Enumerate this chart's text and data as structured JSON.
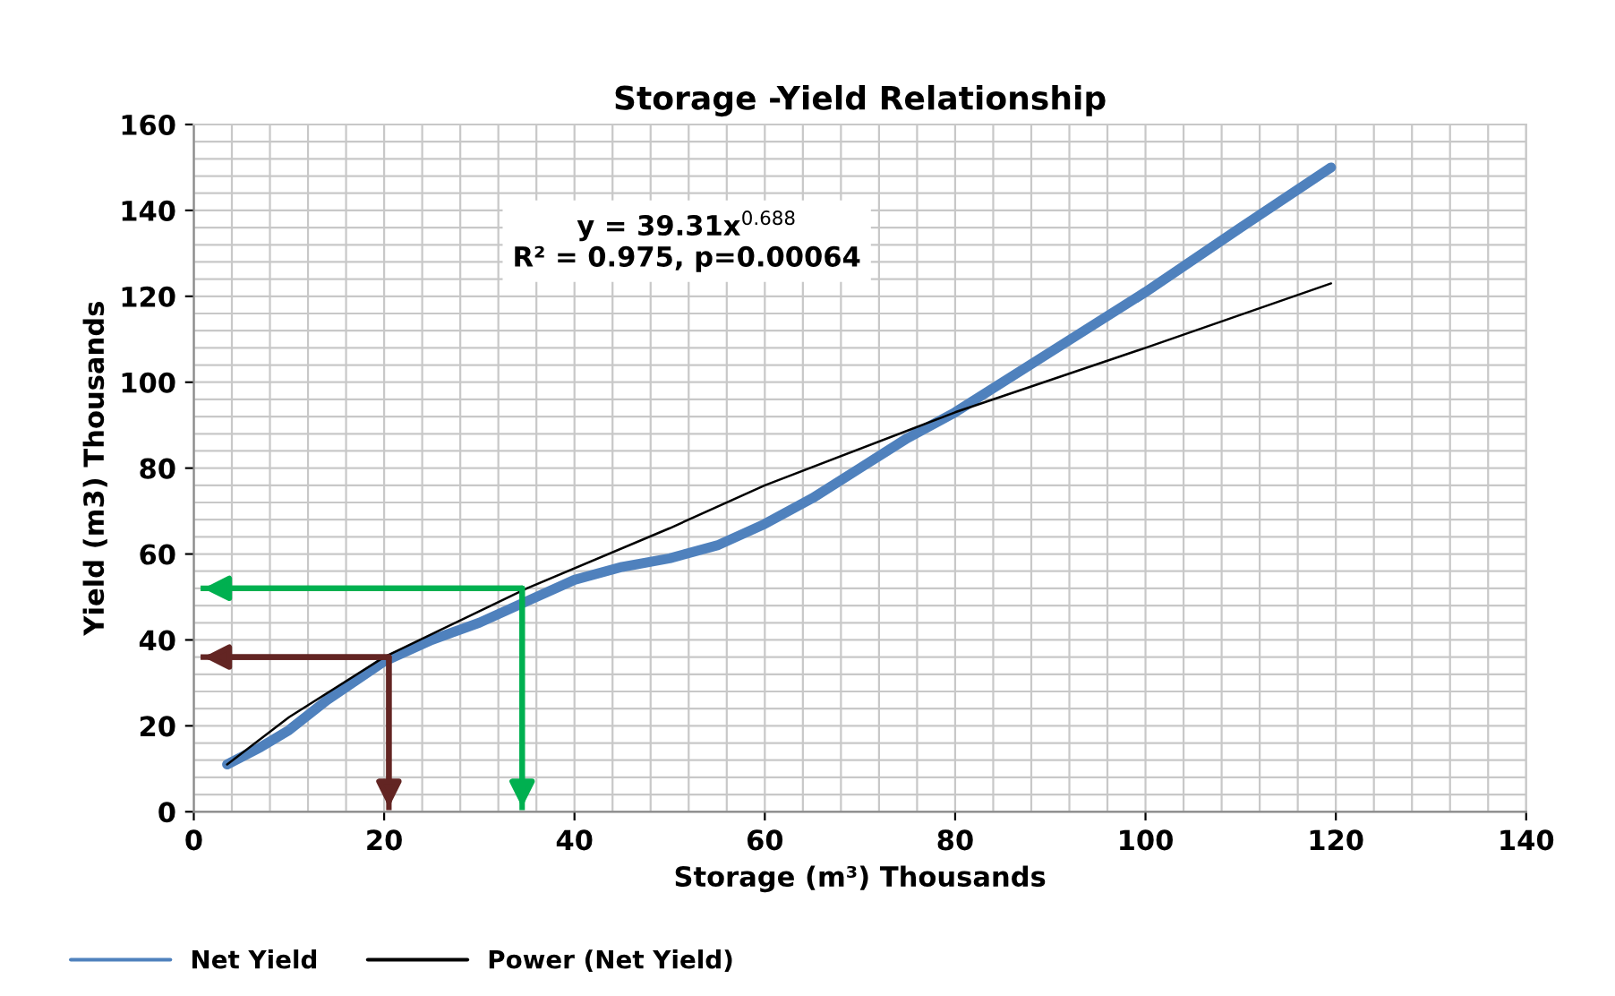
{
  "chart_data": {
    "type": "line",
    "title": "Storage -Yield Relationship",
    "xlabel": "Storage (m³) Thousands",
    "ylabel": "Yield (m3) Thousands",
    "xlim": [
      0,
      140
    ],
    "xticks": [
      0,
      20,
      40,
      60,
      80,
      100,
      120,
      140
    ],
    "ylim": [
      0,
      160
    ],
    "yticks": [
      0,
      20,
      40,
      60,
      80,
      100,
      120,
      140,
      160
    ],
    "grid": true,
    "legend": "bottom left",
    "annotations": [
      "y = 39.31x$^{0.688}$\nR² = 0.975, p=0.00064"
    ],
    "series": [
      {
        "name": "Net Yield",
        "color": "#4f81bd",
        "x": [
          3.5,
          7,
          10,
          14,
          20,
          25,
          30,
          35,
          40,
          45,
          50,
          55,
          60,
          65,
          70,
          75,
          80,
          90,
          100,
          110,
          119.5
        ],
        "values": [
          11,
          15,
          19,
          26,
          35,
          40,
          44,
          49,
          54,
          57,
          59,
          62,
          67,
          73,
          80,
          87,
          93,
          107,
          121,
          136,
          150
        ]
      },
      {
        "name": "Power (Net Yield)",
        "color": "#000000",
        "x": [
          3.5,
          10,
          20,
          35,
          50,
          60,
          80,
          100,
          119.5
        ],
        "values": [
          11,
          22,
          36,
          52,
          66,
          76,
          93,
          108,
          123
        ]
      },
      {
        "color": "#00b050",
        "x": [
          1,
          34.5,
          34.5
        ],
        "values": [
          52,
          52,
          1
        ]
      },
      {
        "color": "#632523",
        "x": [
          1,
          20.5,
          20.5
        ],
        "values": [
          36,
          36,
          1
        ]
      }
    ]
  }
}
